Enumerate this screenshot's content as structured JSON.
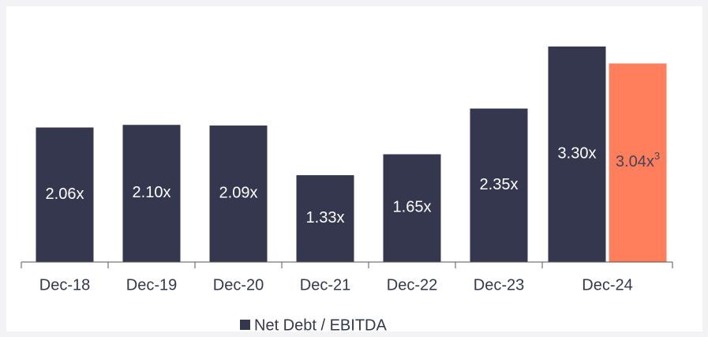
{
  "chart_data": {
    "type": "bar",
    "categories": [
      "Dec-18",
      "Dec-19",
      "Dec-20",
      "Dec-21",
      "Dec-22",
      "Dec-23",
      "Dec-24"
    ],
    "series": [
      {
        "name": "Net Debt / EBITDA",
        "color": "#35374f",
        "label_color": "#ffffff",
        "values": [
          2.06,
          2.1,
          2.09,
          1.33,
          1.65,
          2.35,
          3.3
        ],
        "value_labels": [
          "2.06x",
          "2.10x",
          "2.09x",
          "1.33x",
          "1.65x",
          "2.35x",
          "3.30x"
        ]
      },
      {
        "color": "#ff7f5c",
        "label_color": "#45435a",
        "values": [
          null,
          null,
          null,
          null,
          null,
          null,
          3.04
        ],
        "value_labels": [
          null,
          null,
          null,
          null,
          null,
          null,
          "3.04x"
        ],
        "footnote": "3"
      }
    ],
    "ylim": [
      0,
      4
    ],
    "legend": "bottom"
  }
}
